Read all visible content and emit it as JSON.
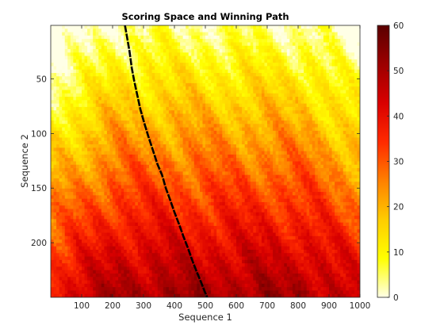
{
  "chart_data": {
    "type": "heatmap",
    "title": "Scoring Space and Winning Path",
    "xlabel": "Sequence 1",
    "ylabel": "Sequence 2",
    "xlim": [
      0,
      1000
    ],
    "ylim": [
      1,
      250
    ],
    "y_reversed": true,
    "x_ticks": [
      100,
      200,
      300,
      400,
      500,
      600,
      700,
      800,
      900,
      1000
    ],
    "y_ticks": [
      50,
      100,
      150,
      200
    ],
    "colormap": "hot (reversed)",
    "colorbar": {
      "range": [
        0,
        60
      ],
      "ticks": [
        0,
        10,
        20,
        30,
        40,
        50,
        60
      ],
      "placement": "right"
    },
    "color_stops": [
      "#ffffe6",
      "#ffff00",
      "#ffcc00",
      "#ff8000",
      "#ff2a00",
      "#d90000",
      "#9c0000",
      "#5a0000"
    ],
    "grid": false,
    "series": [
      {
        "type": "line",
        "color": "#000000",
        "x": [
          240,
          247,
          255,
          262,
          270,
          280,
          290,
          302,
          315,
          330,
          345,
          360,
          372,
          385,
          400,
          415,
          430,
          445,
          460,
          474,
          486,
          497,
          506
        ],
        "y": [
          1,
          12,
          25,
          40,
          52,
          65,
          78,
          90,
          102,
          115,
          128,
          138,
          150,
          160,
          172,
          183,
          195,
          206,
          218,
          228,
          236,
          244,
          250
        ]
      }
    ]
  }
}
